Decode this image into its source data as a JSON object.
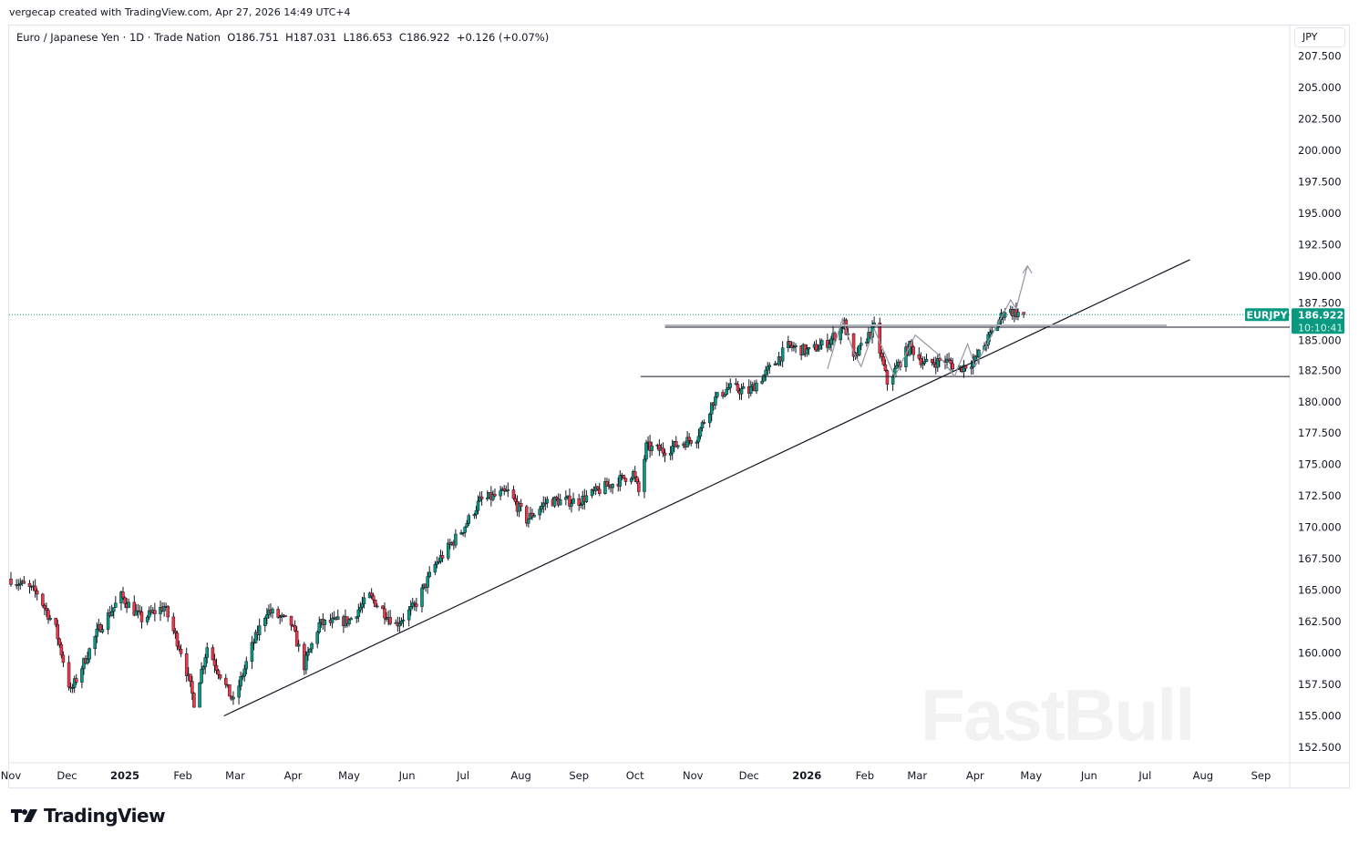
{
  "header": {
    "credit": "vergecap created with TradingView.com, Apr 27, 2026 14:49 UTC+4",
    "legend": "Euro / Japanese Yen · 1D · Trade Nation  O186.751  H187.031  L186.653  C186.922  +0.126 (+0.07%)"
  },
  "currency_button": "JPY",
  "price_tag": {
    "symbol": "EURJPY",
    "price": "186.922",
    "countdown": "10:10:41",
    "color": "#089981"
  },
  "branding": {
    "logo": "TradingView",
    "watermark": "FastBull"
  },
  "colors": {
    "up": "#089981",
    "down": "#f23645"
  },
  "chart_data": {
    "type": "candlestick",
    "symbol": "EURJPY",
    "interval": "1D",
    "ylim": [
      151,
      208
    ],
    "y_ticks": [
      "207.500",
      "205.000",
      "202.500",
      "200.000",
      "197.500",
      "195.000",
      "192.500",
      "190.000",
      "187.500",
      "185.000",
      "182.500",
      "180.000",
      "177.500",
      "175.000",
      "172.500",
      "170.000",
      "167.500",
      "165.000",
      "162.500",
      "160.000",
      "157.500",
      "155.000",
      "152.500"
    ],
    "x_ticks": [
      [
        "2024-11-01",
        "Nov"
      ],
      [
        "2024-12-01",
        "Dec"
      ],
      [
        "2025-01-01",
        "2025"
      ],
      [
        "2025-02-01",
        "Feb"
      ],
      [
        "2025-03-01",
        "Mar"
      ],
      [
        "2025-04-01",
        "Apr"
      ],
      [
        "2025-05-01",
        "May"
      ],
      [
        "2025-06-01",
        "Jun"
      ],
      [
        "2025-07-01",
        "Jul"
      ],
      [
        "2025-08-01",
        "Aug"
      ],
      [
        "2025-09-01",
        "Sep"
      ],
      [
        "2025-10-01",
        "Oct"
      ],
      [
        "2025-11-01",
        "Nov"
      ],
      [
        "2025-12-01",
        "Dec"
      ],
      [
        "2026-01-01",
        "2026"
      ],
      [
        "2026-02-01",
        "Feb"
      ],
      [
        "2026-03-01",
        "Mar"
      ],
      [
        "2026-04-01",
        "Apr"
      ],
      [
        "2026-05-01",
        "May"
      ],
      [
        "2026-06-01",
        "Jun"
      ],
      [
        "2026-07-01",
        "Jul"
      ],
      [
        "2026-08-01",
        "Aug"
      ],
      [
        "2026-09-01",
        "Sep"
      ]
    ],
    "approx_close_path": [
      [
        "2024-11-01",
        165.9
      ],
      [
        "2024-11-15",
        164.8
      ],
      [
        "2024-11-25",
        161.9
      ],
      [
        "2024-12-03",
        156.9
      ],
      [
        "2024-12-18",
        161.9
      ],
      [
        "2024-12-30",
        164.5
      ],
      [
        "2025-01-10",
        162.7
      ],
      [
        "2025-01-22",
        163.7
      ],
      [
        "2025-02-01",
        159.8
      ],
      [
        "2025-02-07",
        156.1
      ],
      [
        "2025-02-14",
        160.5
      ],
      [
        "2025-02-28",
        156.1
      ],
      [
        "2025-03-10",
        160.5
      ],
      [
        "2025-03-18",
        163.4
      ],
      [
        "2025-03-31",
        162.3
      ],
      [
        "2025-04-07",
        159.0
      ],
      [
        "2025-04-15",
        162.3
      ],
      [
        "2025-05-01",
        162.6
      ],
      [
        "2025-05-12",
        164.5
      ],
      [
        "2025-05-26",
        162.3
      ],
      [
        "2025-06-05",
        163.7
      ],
      [
        "2025-06-16",
        167.0
      ],
      [
        "2025-07-01",
        169.9
      ],
      [
        "2025-07-10",
        172.1
      ],
      [
        "2025-07-25",
        172.8
      ],
      [
        "2025-08-04",
        170.6
      ],
      [
        "2025-08-15",
        172.1
      ],
      [
        "2025-09-01",
        172.1
      ],
      [
        "2025-09-15",
        173.2
      ],
      [
        "2025-09-30",
        174.3
      ],
      [
        "2025-10-03",
        172.8
      ],
      [
        "2025-10-07",
        176.4
      ],
      [
        "2025-10-16",
        176.1
      ],
      [
        "2025-11-03",
        177.2
      ],
      [
        "2025-11-12",
        180.1
      ],
      [
        "2025-11-20",
        181.1
      ],
      [
        "2025-12-01",
        180.8
      ],
      [
        "2025-12-12",
        182.6
      ],
      [
        "2025-12-22",
        184.4
      ],
      [
        "2026-01-02",
        184.0
      ],
      [
        "2026-01-13",
        184.8
      ],
      [
        "2026-01-21",
        186.2
      ],
      [
        "2026-01-26",
        183.3
      ],
      [
        "2026-02-02",
        185.1
      ],
      [
        "2026-02-06",
        185.9
      ],
      [
        "2026-02-13",
        181.5
      ],
      [
        "2026-02-25",
        184.4
      ],
      [
        "2026-03-05",
        183.0
      ],
      [
        "2026-03-16",
        183.3
      ],
      [
        "2026-03-23",
        182.6
      ],
      [
        "2026-04-01",
        183.3
      ],
      [
        "2026-04-10",
        185.5
      ],
      [
        "2026-04-17",
        187.3
      ],
      [
        "2026-04-27",
        186.922
      ]
    ],
    "last_price": 186.922,
    "drawings": {
      "trendline": [
        [
          "2025-02-23",
          155.0
        ],
        [
          "2026-07-25",
          191.3
        ]
      ],
      "resistance": {
        "price": 186.0,
        "from": "2025-10-17"
      },
      "support": {
        "price": 182.0,
        "from": "2025-10-04"
      },
      "pattern_path": [
        [
          "2026-01-12",
          182.6
        ],
        [
          "2026-01-20",
          186.6
        ],
        [
          "2026-01-26",
          183.9
        ],
        [
          "2026-01-30",
          182.8
        ],
        [
          "2026-02-06",
          185.8
        ],
        [
          "2026-02-17",
          182.0
        ],
        [
          "2026-02-28",
          185.3
        ],
        [
          "2026-03-12",
          183.8
        ],
        [
          "2026-03-21",
          182.0
        ],
        [
          "2026-03-28",
          184.6
        ],
        [
          "2026-04-01",
          182.8
        ],
        [
          "2026-04-20",
          188.1
        ],
        [
          "2026-04-23",
          187.4
        ],
        [
          "2026-04-29",
          190.8
        ]
      ]
    }
  }
}
